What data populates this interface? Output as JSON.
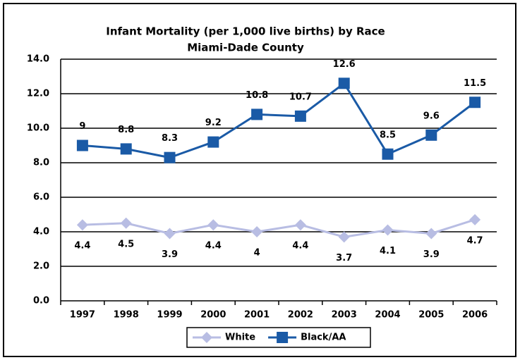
{
  "chart_data": {
    "type": "line",
    "title": "Infant Mortality (per 1,000 live births) by Race",
    "subtitle": "Miami-Dade County",
    "categories": [
      "1997",
      "1998",
      "1999",
      "2000",
      "2001",
      "2002",
      "2003",
      "2004",
      "2005",
      "2006"
    ],
    "series": [
      {
        "name": "White",
        "color": "#b8bde3",
        "marker": "diamond",
        "values": [
          4.4,
          4.5,
          3.9,
          4.4,
          4,
          4.4,
          3.7,
          4.1,
          3.9,
          4.7
        ]
      },
      {
        "name": "Black/AA",
        "color": "#1a5aa6",
        "marker": "square",
        "values": [
          9,
          8.8,
          8.3,
          9.2,
          10.8,
          10.7,
          12.6,
          8.5,
          9.6,
          11.5
        ]
      }
    ],
    "ylim": [
      0,
      14
    ],
    "yticks": [
      {
        "value": 0,
        "label": "0.0"
      },
      {
        "value": 2,
        "label": "2.0"
      },
      {
        "value": 4,
        "label": "4.0"
      },
      {
        "value": 6,
        "label": "6.0"
      },
      {
        "value": 8,
        "label": "8.0"
      },
      {
        "value": 10,
        "label": "10.0"
      },
      {
        "value": 12,
        "label": "12.0"
      },
      {
        "value": 14,
        "label": "14.0"
      }
    ],
    "grid": true,
    "legend": "bottom"
  }
}
